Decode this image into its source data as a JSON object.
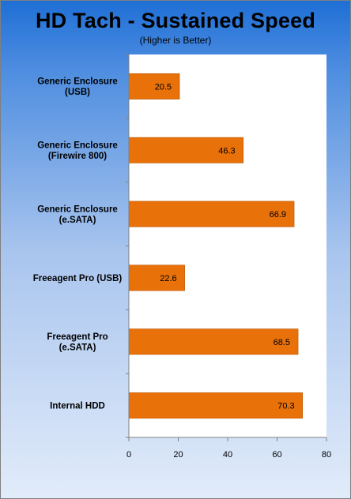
{
  "chart_data": {
    "type": "bar",
    "orientation": "horizontal",
    "title": "HD Tach - Sustained Speed",
    "subtitle": "(Higher is Better)",
    "categories": [
      [
        "Generic Enclosure",
        "(USB)"
      ],
      [
        "Generic Enclosure",
        "(Firewire 800)"
      ],
      [
        "Generic Enclosure",
        "(e.SATA)"
      ],
      [
        "Freeagent Pro (USB)"
      ],
      [
        "Freeagent Pro",
        "(e.SATA)"
      ],
      [
        "Internal HDD"
      ]
    ],
    "values": [
      20.5,
      46.3,
      66.9,
      22.6,
      68.5,
      70.3
    ],
    "value_labels": [
      "20.5",
      "46.3",
      "66.9",
      "22.6",
      "68.5",
      "70.3"
    ],
    "xlim": [
      0,
      80
    ],
    "xticks": [
      "0",
      "20",
      "40",
      "60",
      "80"
    ],
    "xtick_values": [
      0,
      20,
      40,
      60,
      80
    ],
    "grid": "none",
    "legend": "none",
    "colors": {
      "bar": "#e8710a",
      "bar_edge": "#b85400",
      "plot_bg": "#ffffff",
      "axis": "#808080"
    }
  }
}
